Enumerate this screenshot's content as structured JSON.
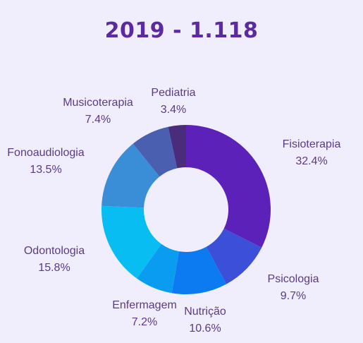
{
  "chart_data": {
    "type": "pie",
    "title": "2019 - 1.118",
    "donut": true,
    "slices": [
      {
        "name": "Fisioterapia",
        "value": 32.4,
        "display": "32.4%",
        "color": "#5c21b8"
      },
      {
        "name": "Psicologia",
        "value": 9.7,
        "display": "9.7%",
        "color": "#3b4fd9"
      },
      {
        "name": "Nutrição",
        "value": 10.6,
        "display": "10.6%",
        "color": "#0c7af0"
      },
      {
        "name": "Enfermagem",
        "value": 7.2,
        "display": "7.2%",
        "color": "#0a9cf0"
      },
      {
        "name": "Odontologia",
        "value": 15.8,
        "display": "15.8%",
        "color": "#07bdf2"
      },
      {
        "name": "Fonoaudiologia",
        "value": 13.5,
        "display": "13.5%",
        "color": "#3a8ed8"
      },
      {
        "name": "Musicoterapia",
        "value": 7.4,
        "display": "7.4%",
        "color": "#4a5fb0"
      },
      {
        "name": "Pediatria",
        "value": 3.4,
        "display": "3.4%",
        "color": "#4a2d7a"
      }
    ]
  }
}
